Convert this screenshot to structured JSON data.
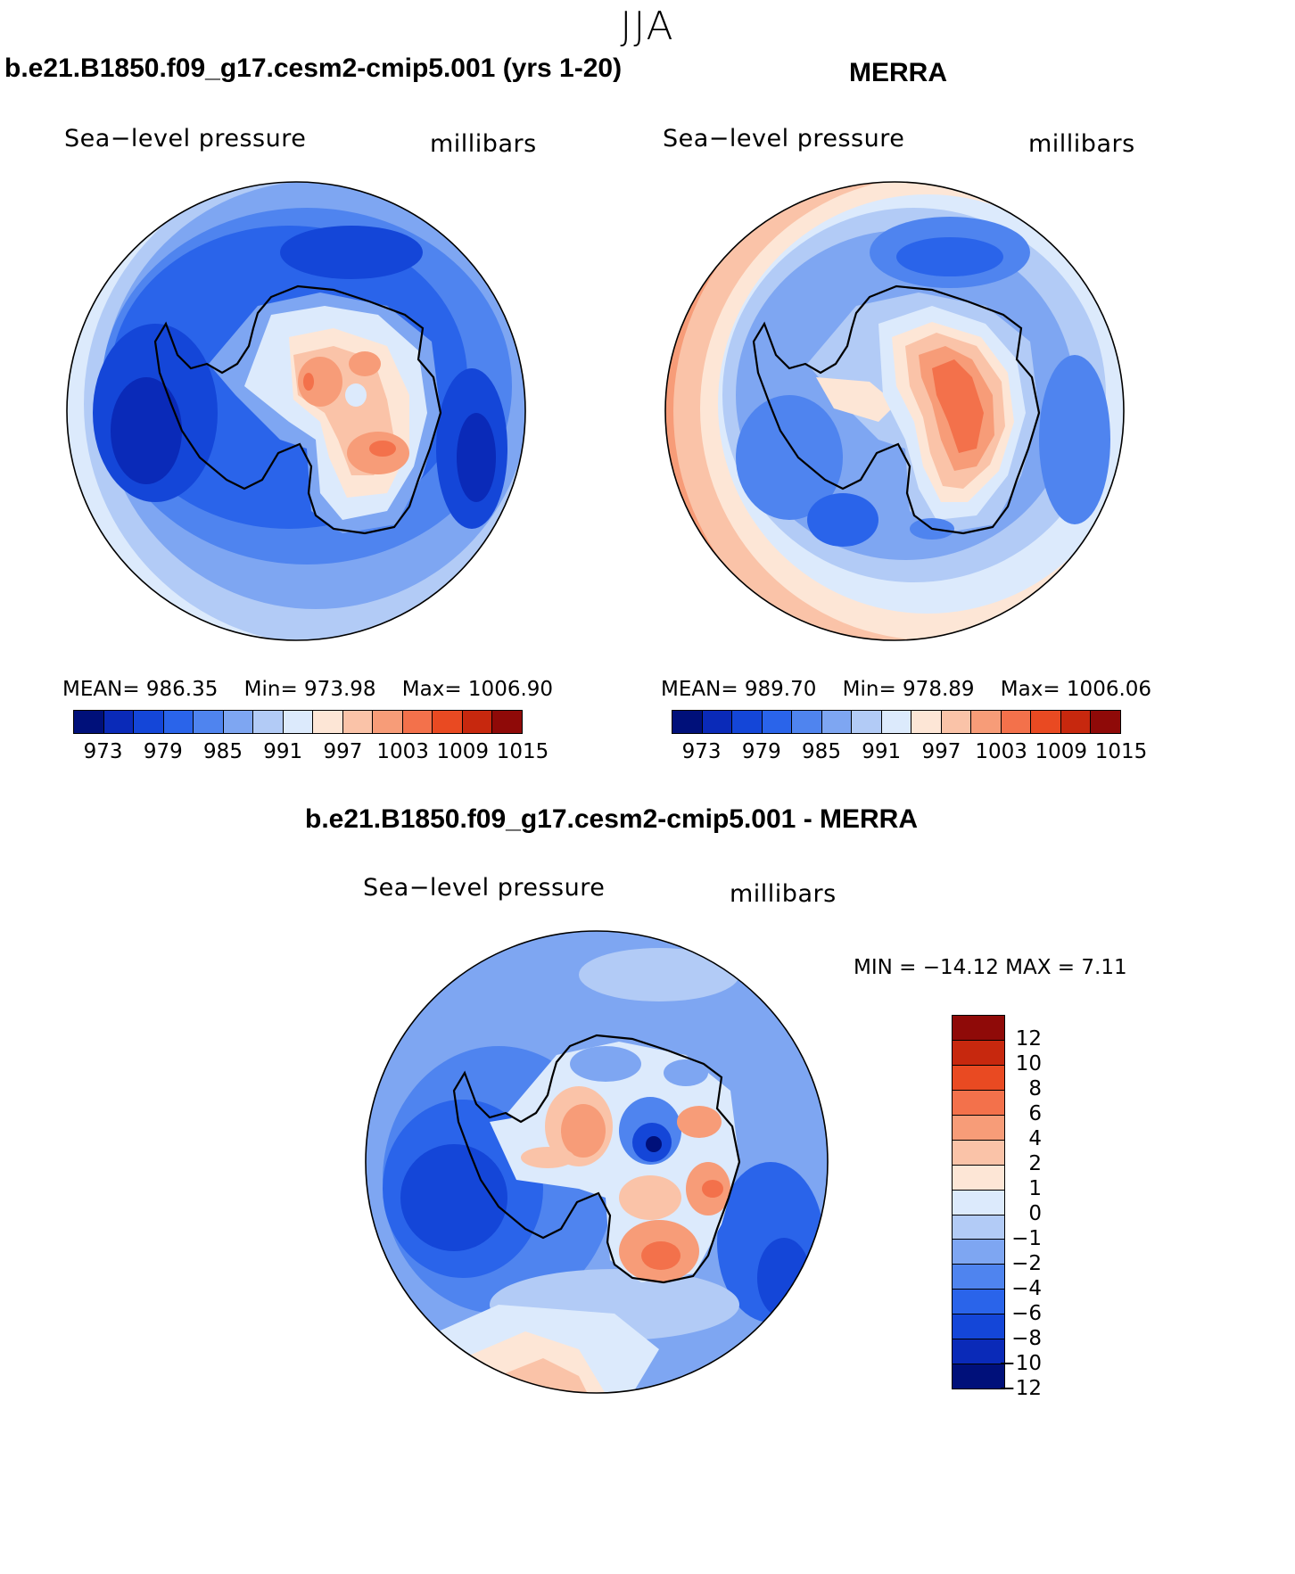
{
  "figure": {
    "season": "JJA",
    "units_label": "millibars",
    "variable_label": "Sea−level pressure"
  },
  "panels": {
    "model": {
      "title": "b.e21.B1850.f09_g17.cesm2-cmip5.001 (yrs 1-20)",
      "stats": {
        "mean_label": "MEAN=",
        "mean": "986.35",
        "min_label": "Min=",
        "min": "973.98",
        "max_label": "Max=",
        "max": "1006.90"
      }
    },
    "obs": {
      "title": "MERRA",
      "stats": {
        "mean_label": "MEAN=",
        "mean": "989.70",
        "min_label": "Min=",
        "min": "978.89",
        "max_label": "Max=",
        "max": "1006.06"
      }
    },
    "diff": {
      "title": "b.e21.B1850.f09_g17.cesm2-cmip5.001 - MERRA",
      "minmax": "MIN = −14.12  MAX =     7.11"
    }
  },
  "colorbars": {
    "abs": {
      "colors": [
        "#00107a",
        "#0a2ab8",
        "#1446d8",
        "#2a64ea",
        "#4f84ef",
        "#7ea6f2",
        "#b2cbf6",
        "#dceafc",
        "#fde6d6",
        "#fac3a8",
        "#f79c78",
        "#f3714b",
        "#e94a22",
        "#c7280e",
        "#8f0a08"
      ],
      "tick_labels": [
        "973",
        "979",
        "985",
        "991",
        "997",
        "1003",
        "1009",
        "1015"
      ]
    },
    "diff": {
      "colors_top_to_bottom": [
        "#8f0a08",
        "#c7280e",
        "#e94a22",
        "#f3714b",
        "#f79c78",
        "#fac3a8",
        "#fde6d6",
        "#dceafc",
        "#b2cbf6",
        "#7ea6f2",
        "#4f84ef",
        "#2a64ea",
        "#1446d8",
        "#0a2ab8",
        "#00107a"
      ],
      "tick_labels": [
        "12",
        "10",
        "8",
        "6",
        "4",
        "2",
        "1",
        "0",
        "−1",
        "−2",
        "−4",
        "−6",
        "−8",
        "−10",
        "−12"
      ]
    }
  }
}
